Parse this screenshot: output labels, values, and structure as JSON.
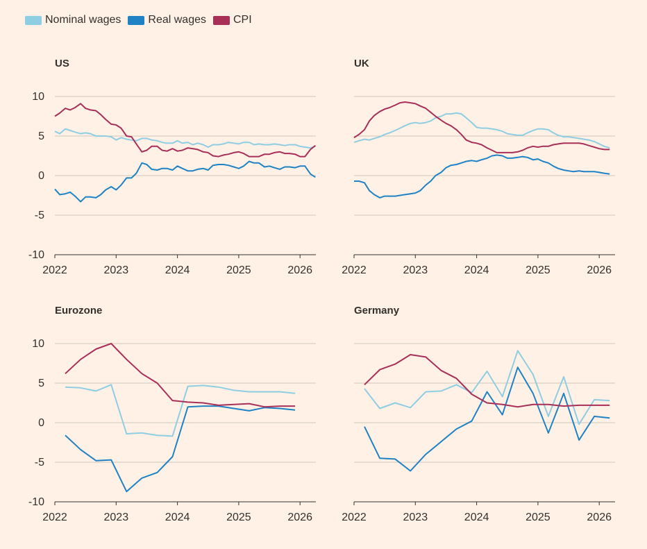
{
  "legend": [
    {
      "label": "Nominal wages",
      "color": "#8FCDE3"
    },
    {
      "label": "Real wages",
      "color": "#1F82C4"
    },
    {
      "label": "CPI",
      "color": "#A72F58"
    }
  ],
  "chart_data": [
    {
      "type": "line",
      "title": "US",
      "xlim": [
        2022,
        2026.25
      ],
      "ylim": [
        -10,
        10
      ],
      "yticks": [
        10,
        5,
        0,
        -5,
        -10
      ],
      "xticks": [
        2022,
        2023,
        2024,
        2025,
        2026
      ],
      "ytick_labels": [
        "10",
        "5",
        "0",
        "-5",
        "-10"
      ],
      "xtick_labels": [
        "2022",
        "2023",
        "2024",
        "2025",
        "2026"
      ],
      "series": [
        {
          "name": "Nominal wages",
          "color": "#8FCDE3",
          "x": [
            2022.0,
            2022.08,
            2022.17,
            2022.25,
            2022.33,
            2022.42,
            2022.5,
            2022.58,
            2022.67,
            2022.75,
            2022.83,
            2022.92,
            2023.0,
            2023.08,
            2023.17,
            2023.25,
            2023.33,
            2023.42,
            2023.5,
            2023.58,
            2023.67,
            2023.75,
            2023.83,
            2023.92,
            2024.0,
            2024.08,
            2024.17,
            2024.25,
            2024.33,
            2024.42,
            2024.5,
            2024.58,
            2024.67,
            2024.75,
            2024.83,
            2024.92,
            2025.0,
            2025.08,
            2025.17,
            2025.25,
            2025.33,
            2025.42,
            2025.5,
            2025.58,
            2025.67,
            2025.75,
            2025.83,
            2025.92,
            2026.0,
            2026.08,
            2026.17,
            2026.25
          ],
          "y": [
            5.6,
            5.3,
            5.9,
            5.7,
            5.5,
            5.3,
            5.4,
            5.3,
            5.0,
            5.0,
            5.0,
            4.9,
            4.5,
            4.8,
            4.6,
            4.5,
            4.4,
            4.7,
            4.7,
            4.5,
            4.4,
            4.2,
            4.1,
            4.1,
            4.4,
            4.1,
            4.2,
            3.9,
            4.1,
            3.9,
            3.6,
            3.9,
            3.9,
            4.0,
            4.2,
            4.1,
            4.0,
            4.2,
            4.2,
            3.9,
            4.0,
            3.9,
            3.9,
            4.0,
            3.9,
            3.8,
            3.9,
            3.9,
            3.7,
            3.6,
            3.5,
            3.7
          ]
        },
        {
          "name": "Real wages",
          "color": "#1F82C4",
          "x": [
            2022.0,
            2022.08,
            2022.17,
            2022.25,
            2022.33,
            2022.42,
            2022.5,
            2022.58,
            2022.67,
            2022.75,
            2022.83,
            2022.92,
            2023.0,
            2023.08,
            2023.17,
            2023.25,
            2023.33,
            2023.42,
            2023.5,
            2023.58,
            2023.67,
            2023.75,
            2023.83,
            2023.92,
            2024.0,
            2024.08,
            2024.17,
            2024.25,
            2024.33,
            2024.42,
            2024.5,
            2024.58,
            2024.67,
            2024.75,
            2024.83,
            2024.92,
            2025.0,
            2025.08,
            2025.17,
            2025.25,
            2025.33,
            2025.42,
            2025.5,
            2025.58,
            2025.67,
            2025.75,
            2025.83,
            2025.92,
            2026.0,
            2026.08,
            2026.17,
            2026.25
          ],
          "y": [
            -1.7,
            -2.4,
            -2.3,
            -2.1,
            -2.6,
            -3.3,
            -2.7,
            -2.7,
            -2.8,
            -2.4,
            -1.8,
            -1.4,
            -1.8,
            -1.2,
            -0.3,
            -0.3,
            0.3,
            1.6,
            1.4,
            0.8,
            0.7,
            0.9,
            0.9,
            0.7,
            1.2,
            0.9,
            0.6,
            0.6,
            0.8,
            0.9,
            0.7,
            1.3,
            1.4,
            1.4,
            1.3,
            1.1,
            0.9,
            1.2,
            1.8,
            1.6,
            1.6,
            1.1,
            1.2,
            1.0,
            0.8,
            1.1,
            1.1,
            1.0,
            1.2,
            1.2,
            0.2,
            -0.2
          ]
        },
        {
          "name": "CPI",
          "color": "#A72F58",
          "x": [
            2022.0,
            2022.08,
            2022.17,
            2022.25,
            2022.33,
            2022.42,
            2022.5,
            2022.58,
            2022.67,
            2022.75,
            2022.83,
            2022.92,
            2023.0,
            2023.08,
            2023.17,
            2023.25,
            2023.33,
            2023.42,
            2023.5,
            2023.58,
            2023.67,
            2023.75,
            2023.83,
            2023.92,
            2024.0,
            2024.08,
            2024.17,
            2024.25,
            2024.33,
            2024.42,
            2024.5,
            2024.58,
            2024.67,
            2024.75,
            2024.83,
            2024.92,
            2025.0,
            2025.08,
            2025.17,
            2025.25,
            2025.33,
            2025.42,
            2025.5,
            2025.58,
            2025.67,
            2025.75,
            2025.83,
            2025.92,
            2026.0,
            2026.08,
            2026.17,
            2026.25
          ],
          "y": [
            7.5,
            7.9,
            8.5,
            8.3,
            8.6,
            9.1,
            8.5,
            8.3,
            8.2,
            7.7,
            7.1,
            6.5,
            6.4,
            6.0,
            5.0,
            4.9,
            4.0,
            3.0,
            3.2,
            3.7,
            3.7,
            3.2,
            3.1,
            3.4,
            3.1,
            3.2,
            3.5,
            3.4,
            3.3,
            3.0,
            2.9,
            2.5,
            2.4,
            2.6,
            2.7,
            2.9,
            3.0,
            2.8,
            2.4,
            2.4,
            2.4,
            2.7,
            2.7,
            2.9,
            3.0,
            2.8,
            2.8,
            2.7,
            2.4,
            2.4,
            3.3,
            3.8
          ]
        }
      ]
    },
    {
      "type": "line",
      "title": "UK",
      "xlim": [
        2022,
        2026.25
      ],
      "ylim": [
        -10,
        10
      ],
      "yticks": [
        10,
        5,
        0,
        -5,
        -10
      ],
      "xticks": [
        2022,
        2023,
        2024,
        2025,
        2026
      ],
      "xtick_labels": [
        "2022",
        "2023",
        "2024",
        "2025",
        "2026"
      ],
      "series": [
        {
          "name": "Nominal wages",
          "color": "#8FCDE3",
          "x": [
            2022.0,
            2022.08,
            2022.17,
            2022.25,
            2022.33,
            2022.42,
            2022.5,
            2022.58,
            2022.67,
            2022.75,
            2022.83,
            2022.92,
            2023.0,
            2023.08,
            2023.17,
            2023.25,
            2023.33,
            2023.42,
            2023.5,
            2023.58,
            2023.67,
            2023.75,
            2023.83,
            2023.92,
            2024.0,
            2024.08,
            2024.17,
            2024.25,
            2024.33,
            2024.42,
            2024.5,
            2024.58,
            2024.67,
            2024.75,
            2024.83,
            2024.92,
            2025.0,
            2025.08,
            2025.17,
            2025.25,
            2025.33,
            2025.42,
            2025.5,
            2025.58,
            2025.67,
            2025.75,
            2025.83,
            2025.92,
            2026.0,
            2026.08,
            2026.17
          ],
          "y": [
            4.2,
            4.4,
            4.6,
            4.5,
            4.7,
            4.9,
            5.2,
            5.4,
            5.7,
            6.0,
            6.3,
            6.6,
            6.7,
            6.6,
            6.7,
            6.9,
            7.3,
            7.5,
            7.8,
            7.8,
            7.9,
            7.8,
            7.3,
            6.7,
            6.1,
            6.0,
            6.0,
            5.9,
            5.8,
            5.6,
            5.3,
            5.2,
            5.1,
            5.1,
            5.4,
            5.7,
            5.9,
            5.9,
            5.8,
            5.4,
            5.1,
            4.9,
            4.9,
            4.8,
            4.7,
            4.6,
            4.5,
            4.3,
            4.0,
            3.7,
            3.5
          ]
        },
        {
          "name": "Real wages",
          "color": "#1F82C4",
          "x": [
            2022.0,
            2022.08,
            2022.17,
            2022.25,
            2022.33,
            2022.42,
            2022.5,
            2022.58,
            2022.67,
            2022.75,
            2022.83,
            2022.92,
            2023.0,
            2023.08,
            2023.17,
            2023.25,
            2023.33,
            2023.42,
            2023.5,
            2023.58,
            2023.67,
            2023.75,
            2023.83,
            2023.92,
            2024.0,
            2024.08,
            2024.17,
            2024.25,
            2024.33,
            2024.42,
            2024.5,
            2024.58,
            2024.67,
            2024.75,
            2024.83,
            2024.92,
            2025.0,
            2025.08,
            2025.17,
            2025.25,
            2025.33,
            2025.42,
            2025.5,
            2025.58,
            2025.67,
            2025.75,
            2025.83,
            2025.92,
            2026.0,
            2026.08,
            2026.17
          ],
          "y": [
            -0.7,
            -0.7,
            -0.9,
            -1.9,
            -2.4,
            -2.8,
            -2.6,
            -2.6,
            -2.6,
            -2.5,
            -2.4,
            -2.3,
            -2.2,
            -1.9,
            -1.2,
            -0.7,
            0.0,
            0.4,
            1.0,
            1.3,
            1.4,
            1.6,
            1.8,
            1.9,
            1.8,
            2.0,
            2.2,
            2.5,
            2.6,
            2.5,
            2.2,
            2.2,
            2.3,
            2.4,
            2.3,
            2.0,
            2.1,
            1.8,
            1.6,
            1.2,
            0.9,
            0.7,
            0.6,
            0.5,
            0.6,
            0.5,
            0.5,
            0.5,
            0.4,
            0.3,
            0.2
          ]
        },
        {
          "name": "CPI",
          "color": "#A72F58",
          "x": [
            2022.0,
            2022.08,
            2022.17,
            2022.25,
            2022.33,
            2022.42,
            2022.5,
            2022.58,
            2022.67,
            2022.75,
            2022.83,
            2022.92,
            2023.0,
            2023.08,
            2023.17,
            2023.25,
            2023.33,
            2023.42,
            2023.5,
            2023.58,
            2023.67,
            2023.75,
            2023.83,
            2023.92,
            2024.0,
            2024.08,
            2024.17,
            2024.25,
            2024.33,
            2024.42,
            2024.5,
            2024.58,
            2024.67,
            2024.75,
            2024.83,
            2024.92,
            2025.0,
            2025.08,
            2025.17,
            2025.25,
            2025.33,
            2025.42,
            2025.5,
            2025.58,
            2025.67,
            2025.75,
            2025.83,
            2025.92,
            2026.0,
            2026.08,
            2026.17
          ],
          "y": [
            4.8,
            5.2,
            5.8,
            6.9,
            7.6,
            8.1,
            8.4,
            8.6,
            8.9,
            9.2,
            9.3,
            9.2,
            9.1,
            8.8,
            8.5,
            8.0,
            7.5,
            7.0,
            6.6,
            6.3,
            5.8,
            5.2,
            4.5,
            4.2,
            4.1,
            3.9,
            3.5,
            3.2,
            2.9,
            2.9,
            2.9,
            2.9,
            3.0,
            3.2,
            3.5,
            3.7,
            3.6,
            3.7,
            3.7,
            3.9,
            4.0,
            4.1,
            4.1,
            4.1,
            4.1,
            4.0,
            3.8,
            3.6,
            3.4,
            3.3,
            3.3
          ]
        }
      ]
    },
    {
      "type": "line",
      "title": "Eurozone",
      "xlim": [
        2022,
        2026.25
      ],
      "ylim": [
        -10,
        10
      ],
      "yticks": [
        10,
        5,
        0,
        -5,
        -10
      ],
      "xticks": [
        2022,
        2023,
        2024,
        2025,
        2026
      ],
      "ytick_labels": [
        "10",
        "5",
        "0",
        "-5",
        "-10"
      ],
      "xtick_labels": [
        "2022",
        "2023",
        "2024",
        "2025",
        "2026"
      ],
      "series": [
        {
          "name": "Nominal wages",
          "color": "#8FCDE3",
          "x": [
            2022.17,
            2022.42,
            2022.67,
            2022.92,
            2023.17,
            2023.42,
            2023.67,
            2023.92,
            2024.17,
            2024.42,
            2024.67,
            2024.92,
            2025.17,
            2025.42,
            2025.67,
            2025.92
          ],
          "y": [
            4.5,
            4.4,
            4.0,
            4.8,
            -1.4,
            -1.3,
            -1.6,
            -1.7,
            4.6,
            4.7,
            4.5,
            4.1,
            3.9,
            3.9,
            3.9,
            3.7
          ]
        },
        {
          "name": "Real wages",
          "color": "#1F82C4",
          "x": [
            2022.17,
            2022.42,
            2022.67,
            2022.92,
            2023.17,
            2023.42,
            2023.67,
            2023.92,
            2024.17,
            2024.42,
            2024.67,
            2024.92,
            2025.17,
            2025.42,
            2025.67,
            2025.92
          ],
          "y": [
            -1.6,
            -3.4,
            -4.8,
            -4.7,
            -8.7,
            -7.0,
            -6.3,
            -4.3,
            2.0,
            2.1,
            2.1,
            1.8,
            1.5,
            1.9,
            1.8,
            1.6
          ]
        },
        {
          "name": "CPI",
          "color": "#A72F58",
          "x": [
            2022.17,
            2022.42,
            2022.67,
            2022.92,
            2023.17,
            2023.42,
            2023.67,
            2023.92,
            2024.17,
            2024.42,
            2024.67,
            2024.92,
            2025.17,
            2025.42,
            2025.67,
            2025.92
          ],
          "y": [
            6.2,
            8.0,
            9.3,
            10.0,
            8.0,
            6.2,
            5.0,
            2.8,
            2.6,
            2.5,
            2.2,
            2.3,
            2.4,
            2.0,
            2.1,
            2.1
          ]
        }
      ]
    },
    {
      "type": "line",
      "title": "Germany",
      "xlim": [
        2022,
        2026.25
      ],
      "ylim": [
        -10,
        10
      ],
      "yticks": [
        10,
        5,
        0,
        -5,
        -10
      ],
      "xticks": [
        2022,
        2023,
        2024,
        2025,
        2026
      ],
      "xtick_labels": [
        "2022",
        "2023",
        "2024",
        "2025",
        "2026"
      ],
      "series": [
        {
          "name": "Nominal wages",
          "color": "#8FCDE3",
          "x": [
            2022.17,
            2022.42,
            2022.67,
            2022.92,
            2023.17,
            2023.42,
            2023.67,
            2023.92,
            2024.17,
            2024.42,
            2024.67,
            2024.92,
            2025.17,
            2025.42,
            2025.67,
            2025.92,
            2026.17
          ],
          "y": [
            4.3,
            1.8,
            2.5,
            1.9,
            3.9,
            4.0,
            4.8,
            3.8,
            6.5,
            3.3,
            9.1,
            6.1,
            0.8,
            5.8,
            -0.2,
            2.9,
            2.8
          ]
        },
        {
          "name": "Real wages",
          "color": "#1F82C4",
          "x": [
            2022.17,
            2022.42,
            2022.67,
            2022.92,
            2023.17,
            2023.42,
            2023.67,
            2023.92,
            2024.17,
            2024.42,
            2024.67,
            2024.92,
            2025.17,
            2025.42,
            2025.67,
            2025.92,
            2026.17
          ],
          "y": [
            -0.5,
            -4.5,
            -4.6,
            -6.1,
            -4.0,
            -2.4,
            -0.8,
            0.2,
            3.9,
            1.0,
            7.0,
            3.7,
            -1.3,
            3.7,
            -2.2,
            0.8,
            0.6
          ]
        },
        {
          "name": "CPI",
          "color": "#A72F58",
          "x": [
            2022.17,
            2022.42,
            2022.67,
            2022.92,
            2023.17,
            2023.42,
            2023.67,
            2023.92,
            2024.17,
            2024.42,
            2024.67,
            2024.92,
            2025.17,
            2025.42,
            2025.67,
            2025.92,
            2026.17
          ],
          "y": [
            4.8,
            6.7,
            7.4,
            8.6,
            8.3,
            6.6,
            5.6,
            3.6,
            2.5,
            2.3,
            2.0,
            2.3,
            2.3,
            2.1,
            2.2,
            2.2,
            2.2
          ]
        }
      ]
    }
  ]
}
